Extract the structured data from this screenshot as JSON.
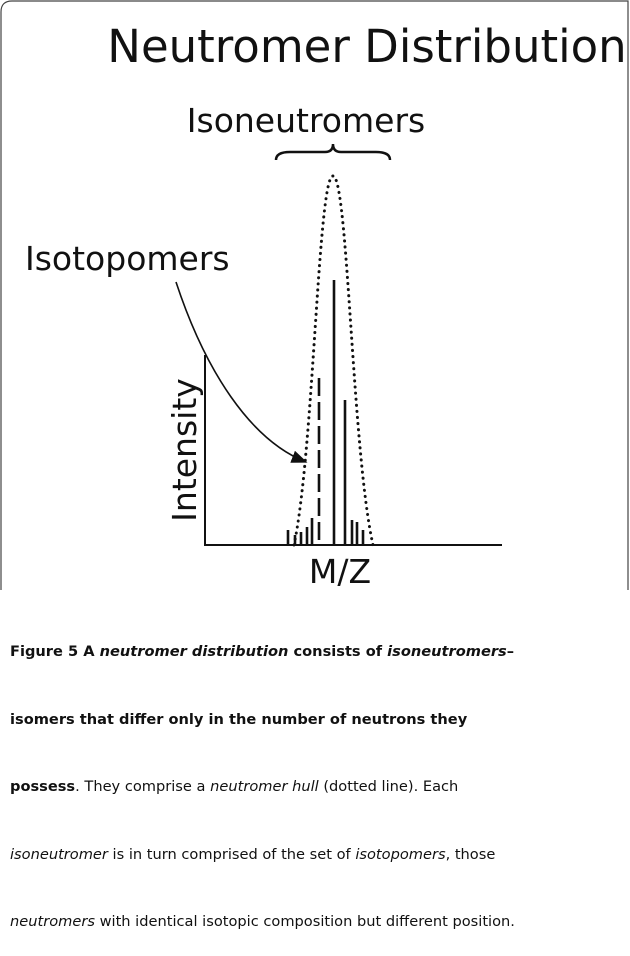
{
  "figure": {
    "title": "Neutromer Distribution",
    "brace_label": "Isoneutromers",
    "arrow_label": "Isotopomers",
    "y_axis_label": "Intensity",
    "x_axis_label": "M/Z"
  },
  "caption": {
    "lines": [
      [
        "Figure 5",
        " A ",
        "neutromer distribution",
        " consists of ",
        "isoneutromers",
        "–"
      ],
      [
        "isomers that differ only in the number of neutrons they"
      ],
      [
        "possess",
        ". They comprise a ",
        "neutromer hull",
        " (dotted line). Each"
      ],
      [
        "isoneutromer",
        " is in turn comprised of the set of ",
        "isotopomers",
        ", those"
      ],
      [
        "neutromers",
        " with identical isotopic composition but different position."
      ]
    ]
  }
}
